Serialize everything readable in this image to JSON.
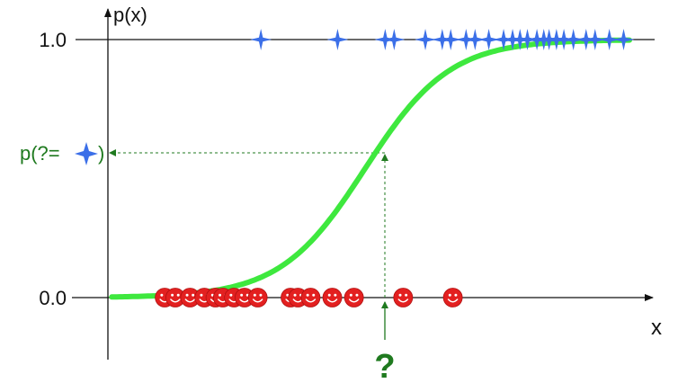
{
  "chart_data": {
    "type": "scatter",
    "title": "",
    "ylabel": "p(x)",
    "xlabel": "x",
    "ylim": [
      0,
      1
    ],
    "y_ticks": [
      {
        "value": 0,
        "label": "0.0"
      },
      {
        "value": 1,
        "label": "1.0"
      }
    ],
    "series": [
      {
        "marker": "star",
        "color": "#3b6fe8",
        "y": 1,
        "x": [
          0.303,
          0.448,
          0.538,
          0.555,
          0.614,
          0.646,
          0.662,
          0.691,
          0.708,
          0.734,
          0.762,
          0.779,
          0.793,
          0.807,
          0.825,
          0.838,
          0.848,
          0.862,
          0.876,
          0.894,
          0.918,
          0.935,
          0.962,
          0.989
        ]
      },
      {
        "marker": "smiley",
        "color": "#e32020",
        "y": 0,
        "x": [
          0.121,
          0.141,
          0.169,
          0.196,
          0.217,
          0.231,
          0.252,
          0.272,
          0.297,
          0.359,
          0.373,
          0.397,
          0.438,
          0.479,
          0.572,
          0.666
        ]
      },
      {
        "marker": "curve",
        "color": "#3ee83e",
        "curve": "logistic",
        "center": 0.5,
        "steepness": 12.5,
        "xrange": [
          0.021,
          1.0
        ]
      }
    ],
    "query": {
      "x": 0.5,
      "y": 0.55,
      "x_label": "?",
      "y_label_prefix": "p(?=",
      "y_label_suffix": ")",
      "color": "#1f7a1f"
    }
  }
}
